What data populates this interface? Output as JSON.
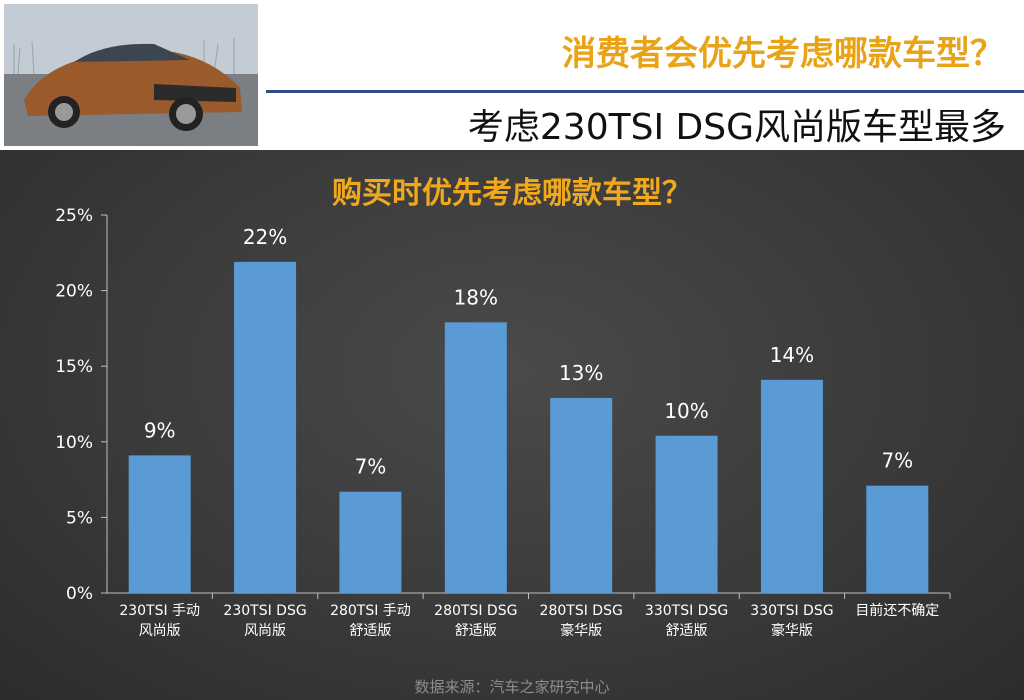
{
  "header": {
    "title": "消费者会优先考虑哪款车型？",
    "subtitle": "考虑230TSI DSG风尚版车型最多"
  },
  "colors": {
    "accent": "#e8a317",
    "bar": "#5b9bd5",
    "panel": "#3a3a3a"
  },
  "chart_data": {
    "type": "bar",
    "title": "购买时优先考虑哪款车型？",
    "categories": [
      [
        "230TSI 手动",
        "风尚版"
      ],
      [
        "230TSI  DSG",
        "风尚版"
      ],
      [
        "280TSI 手动",
        "舒适版"
      ],
      [
        "280TSI DSG",
        "舒适版"
      ],
      [
        "280TSI DSG",
        "豪华版"
      ],
      [
        "330TSI DSG",
        "舒适版"
      ],
      [
        "330TSI DSG",
        "豪华版"
      ],
      [
        "目前还不确定"
      ]
    ],
    "values": [
      9,
      22,
      7,
      18,
      13,
      10,
      14,
      7
    ],
    "bar_values_precise": [
      9.1,
      21.9,
      6.7,
      17.9,
      12.9,
      10.4,
      14.1,
      7.1
    ],
    "data_labels": [
      "9%",
      "22%",
      "7%",
      "18%",
      "13%",
      "10%",
      "14%",
      "7%"
    ],
    "yticks": [
      "0%",
      "5%",
      "10%",
      "15%",
      "20%",
      "25%"
    ],
    "ylim": [
      0,
      25
    ],
    "grid": false,
    "legend": "none",
    "source": "数据来源：汽车之家研究中心"
  }
}
